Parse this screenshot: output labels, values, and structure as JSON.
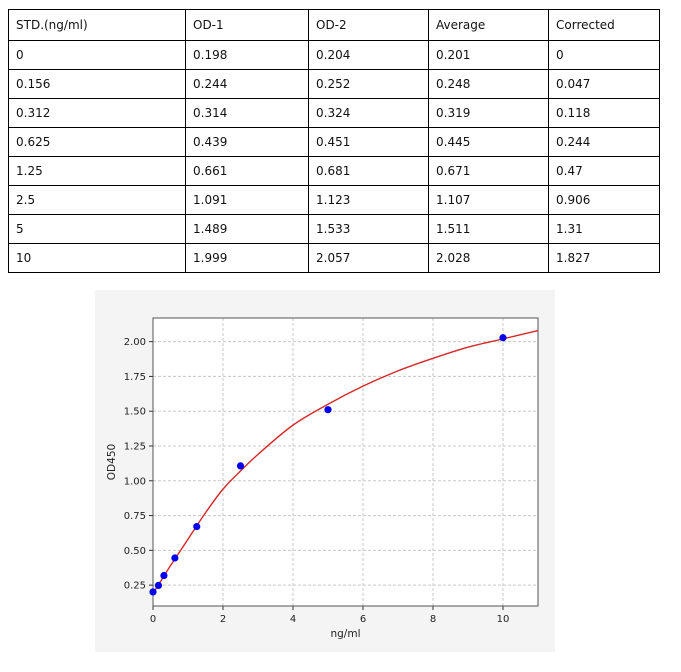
{
  "table": {
    "headers": [
      "STD.(ng/ml)",
      "OD-1",
      "OD-2",
      "Average",
      "Corrected"
    ],
    "rows": [
      [
        "0",
        "0.198",
        "0.204",
        "0.201",
        "0"
      ],
      [
        "0.156",
        "0.244",
        "0.252",
        "0.248",
        "0.047"
      ],
      [
        "0.312",
        "0.314",
        "0.324",
        "0.319",
        "0.118"
      ],
      [
        "0.625",
        "0.439",
        "0.451",
        "0.445",
        "0.244"
      ],
      [
        "1.25",
        "0.661",
        "0.681",
        "0.671",
        "0.47"
      ],
      [
        "2.5",
        "1.091",
        "1.123",
        "1.107",
        "0.906"
      ],
      [
        "5",
        "1.489",
        "1.533",
        "1.511",
        "1.31"
      ],
      [
        "10",
        "1.999",
        "2.057",
        "2.028",
        "1.827"
      ]
    ]
  },
  "chart_data": {
    "type": "scatter",
    "title": "",
    "xlabel": "ng/ml",
    "ylabel": "OD450",
    "xlim": [
      0,
      11
    ],
    "ylim": [
      0.1,
      2.17
    ],
    "xticks": [
      0,
      2,
      4,
      6,
      8,
      10
    ],
    "yticks": [
      0.25,
      0.5,
      0.75,
      1.0,
      1.25,
      1.5,
      1.75,
      2.0
    ],
    "ytick_labels": [
      "0.25",
      "0.50",
      "0.75",
      "1.00",
      "1.25",
      "1.50",
      "1.75",
      "2.00"
    ],
    "grid": true,
    "points": {
      "color": "#0000ee",
      "x": [
        0,
        0.156,
        0.312,
        0.625,
        1.25,
        2.5,
        5,
        10
      ],
      "y": [
        0.201,
        0.248,
        0.319,
        0.445,
        0.671,
        1.107,
        1.511,
        2.028
      ]
    },
    "fit_curve": {
      "color": "#d62728",
      "x": [
        0,
        0.25,
        0.5,
        1,
        1.5,
        2,
        2.5,
        3,
        4,
        5,
        6,
        7,
        8,
        9,
        10,
        11
      ],
      "y": [
        0.19,
        0.29,
        0.39,
        0.58,
        0.77,
        0.94,
        1.07,
        1.19,
        1.4,
        1.55,
        1.68,
        1.79,
        1.88,
        1.96,
        2.02,
        2.08
      ]
    }
  }
}
